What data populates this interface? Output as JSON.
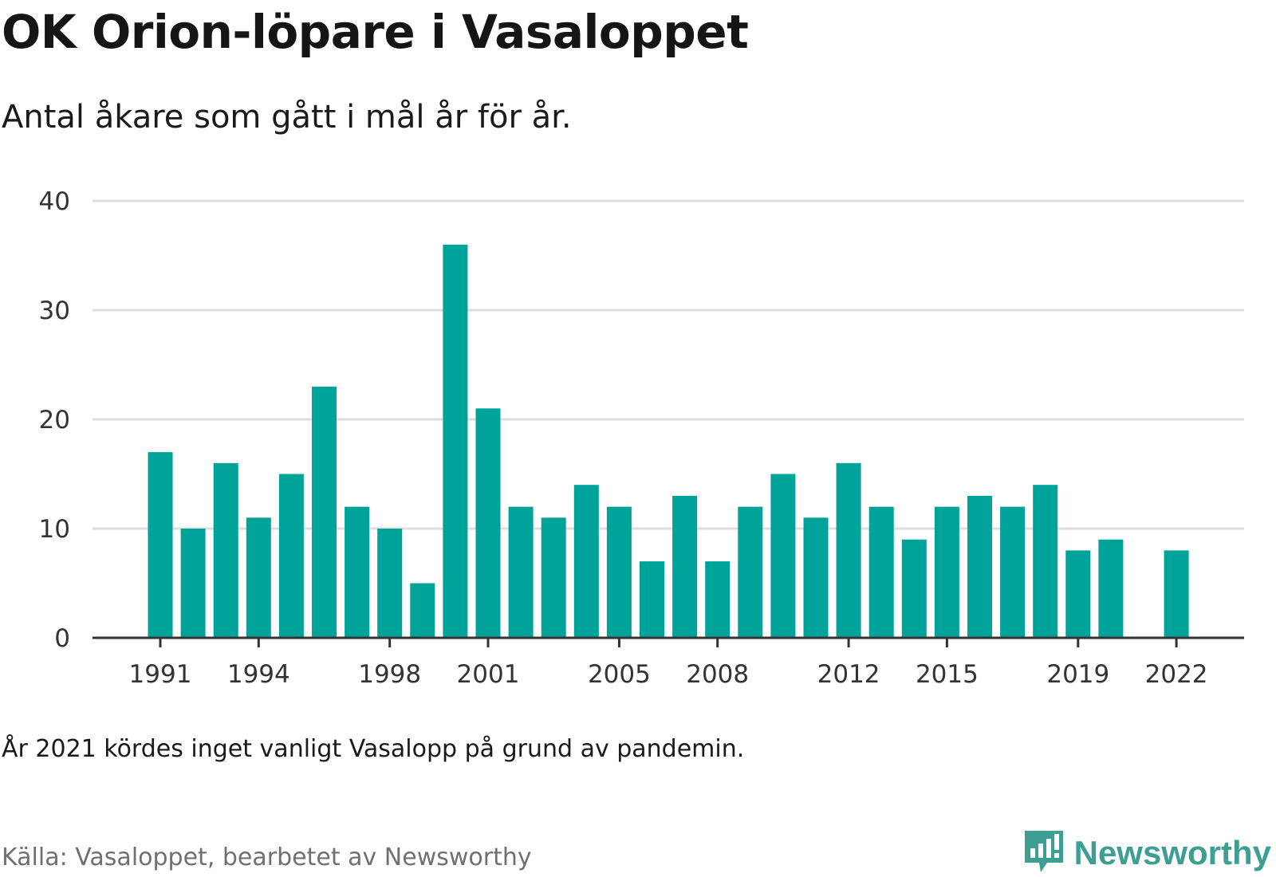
{
  "title": "OK Orion-löpare i Vasaloppet",
  "subtitle": "Antal åkare som gått i mål år för år.",
  "note": "År 2021 kördes inget vanligt Vasalopp på grund av pandemin.",
  "source": "Källa: Vasaloppet, bearbetet av Newsworthy",
  "brand": {
    "name": "Newsworthy",
    "icon": "newsworthy-logo-icon",
    "color": "#3d9e93"
  },
  "colors": {
    "bar": "#00a39a",
    "grid": "#dddddd",
    "axis": "#333333",
    "tick_text": "#333333"
  },
  "chart_data": {
    "type": "bar",
    "categories": [
      1991,
      1992,
      1993,
      1994,
      1995,
      1996,
      1997,
      1998,
      1999,
      2000,
      2001,
      2002,
      2003,
      2004,
      2005,
      2006,
      2007,
      2008,
      2009,
      2010,
      2011,
      2012,
      2013,
      2014,
      2015,
      2016,
      2017,
      2018,
      2019,
      2020,
      2021,
      2022
    ],
    "values": [
      17,
      10,
      16,
      11,
      15,
      23,
      12,
      10,
      5,
      36,
      21,
      12,
      11,
      14,
      12,
      7,
      13,
      7,
      12,
      15,
      11,
      16,
      12,
      9,
      12,
      13,
      12,
      14,
      8,
      9,
      null,
      8
    ],
    "x_tick_labels": [
      "1991",
      "1994",
      "1998",
      "2001",
      "2005",
      "2008",
      "2012",
      "2015",
      "2019",
      "2022"
    ],
    "y_ticks": [
      0,
      10,
      20,
      30,
      40
    ],
    "ylim": [
      0,
      40
    ],
    "grid": true,
    "xlabel": "",
    "ylabel": ""
  }
}
